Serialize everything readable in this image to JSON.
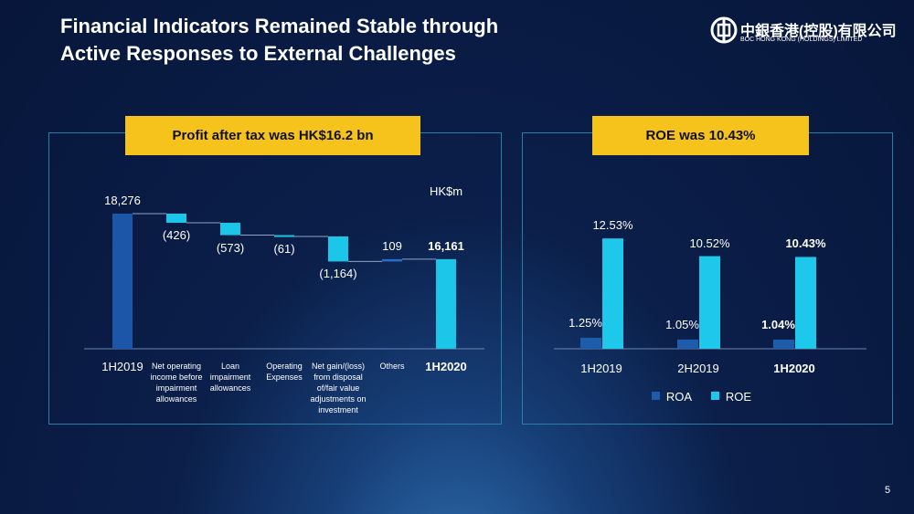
{
  "slide": {
    "title": "Financial Indicators Remained Stable through Active Responses to External Challenges",
    "logo_cn": "中銀香港(控股)有限公司",
    "logo_en": "BOC HONG KONG (HOLDINGS) LIMITED",
    "page": "5"
  },
  "chart_data": [
    {
      "type": "waterfall",
      "callout": "Profit after tax was HK$16.2 bn",
      "unit": "HK$m",
      "categories": [
        "1H2019",
        "Net operating income before impairment allowances",
        "Loan impairment allowances",
        "Operating Expenses",
        "Net gain/(loss) from disposal of/fair value adjustments on investment",
        "Others",
        "1H2020"
      ],
      "values": [
        18276,
        -426,
        -573,
        -61,
        -1164,
        109,
        16161
      ],
      "value_labels": [
        "18,276",
        "(426)",
        "(573)",
        "(61)",
        "(1,164)",
        "109",
        "16,161"
      ],
      "kinds": [
        "total",
        "step",
        "step",
        "step",
        "step",
        "step",
        "total"
      ],
      "colors": {
        "total": "#1b56a8",
        "decrease": "#1cc6e8",
        "increase": "#2b6cc8",
        "last": "#1cc6e8"
      },
      "ylim": [
        12000,
        19250
      ]
    },
    {
      "type": "bar",
      "callout": "ROE was 10.43%",
      "categories": [
        "1H2019",
        "2H2019",
        "1H2020"
      ],
      "series": [
        {
          "name": "ROA",
          "color": "#1d5cab",
          "values": [
            1.25,
            1.05,
            1.04
          ],
          "value_labels": [
            "1.25%",
            "1.05%",
            "1.04%"
          ]
        },
        {
          "name": "ROE",
          "color": "#1ec8ea",
          "values": [
            12.53,
            10.52,
            10.43
          ],
          "value_labels": [
            "12.53%",
            "10.52%",
            "10.43%"
          ]
        }
      ],
      "ylim": [
        0,
        14
      ],
      "legend": "bottom"
    }
  ]
}
